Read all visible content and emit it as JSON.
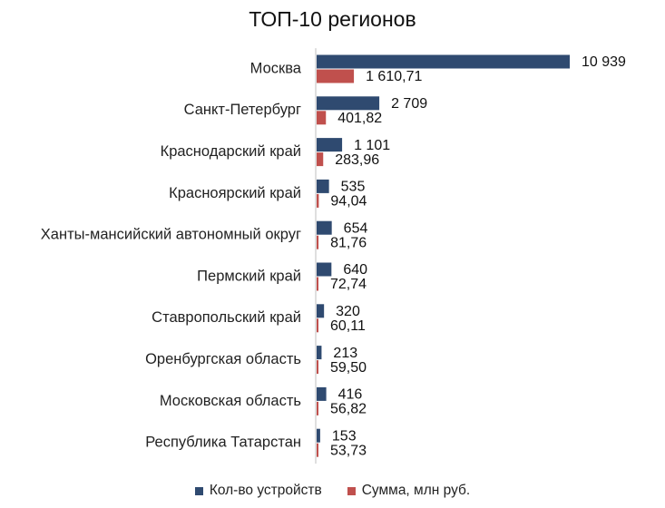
{
  "chart_data": {
    "type": "bar",
    "orientation": "horizontal",
    "title": "ТОП-10 регионов",
    "categories": [
      "Москва",
      "Санкт-Петербург",
      "Краснодарский край",
      "Красноярский край",
      "Ханты-мансийский автономный округ",
      "Пермский край",
      "Ставропольский край",
      "Оренбургская область",
      "Московская область",
      "Республика Татарстан"
    ],
    "series": [
      {
        "name": "Кол-во устройств",
        "color": "#2f4a70",
        "values": [
          10939,
          2709,
          1101,
          535,
          654,
          640,
          320,
          213,
          416,
          153
        ],
        "labels": [
          "10 939",
          "2 709",
          "1 101",
          "535",
          "654",
          "640",
          "320",
          "213",
          "416",
          "153"
        ]
      },
      {
        "name": "Сумма, млн руб.",
        "color": "#c0504d",
        "values": [
          1610.71,
          401.82,
          283.96,
          94.04,
          81.76,
          72.74,
          60.11,
          59.5,
          56.82,
          53.73
        ],
        "labels": [
          "1 610,71",
          "401,82",
          "283,96",
          "94,04",
          "81,76",
          "72,74",
          "60,11",
          "59,50",
          "56,82",
          "53,73"
        ]
      }
    ],
    "legend_position": "bottom",
    "grid": false
  }
}
